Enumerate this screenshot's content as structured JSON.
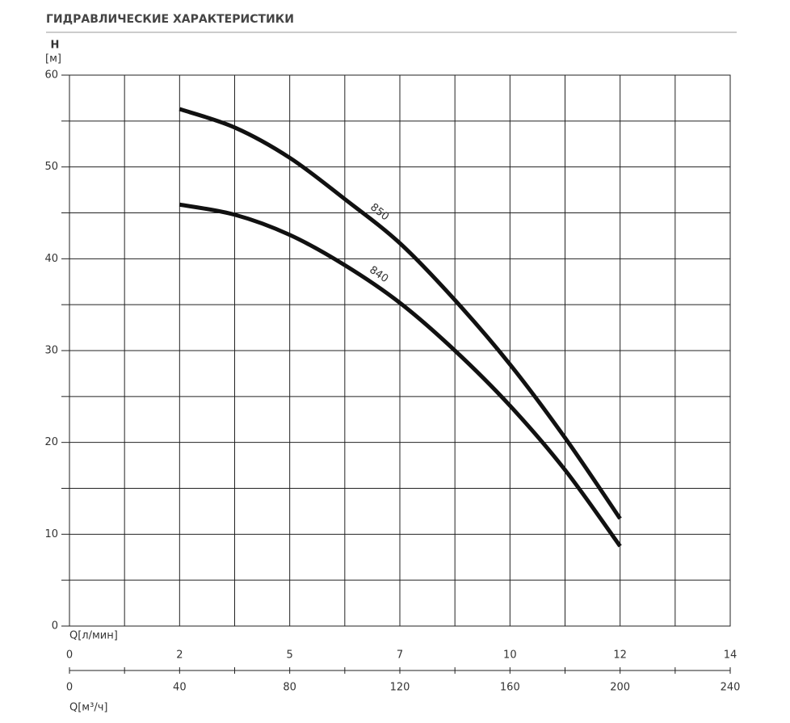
{
  "chart_data": {
    "type": "line",
    "title": "ГИДРАВЛИЧЕСКИЕ ХАРАКТЕРИСТИКИ",
    "y_label": "H",
    "y_unit": "[м]",
    "x2_label": "Q[л/мин]",
    "x_label": "Q[м³/ч]",
    "x": [
      40,
      60,
      80,
      100,
      120,
      140,
      160,
      180,
      200
    ],
    "series": [
      {
        "name": "850",
        "color": "#111111",
        "values": [
          56.3,
          54.3,
          51,
          46.5,
          41.7,
          35.5,
          28.5,
          20.5,
          11.7
        ]
      },
      {
        "name": "840",
        "color": "#111111",
        "values": [
          45.9,
          44.8,
          42.6,
          39.3,
          35.2,
          30,
          24,
          17,
          8.7
        ]
      }
    ],
    "xlim": [
      0,
      240
    ],
    "xticks": [
      0,
      40,
      80,
      120,
      160,
      200,
      240
    ],
    "x2lim": [
      0,
      14.4
    ],
    "x2ticks": [
      0,
      {
        "value": 2.4,
        "label": "2"
      },
      {
        "value": 4.8,
        "label": "5"
      },
      {
        "value": 7.2,
        "label": "7"
      },
      {
        "value": 9.6,
        "label": "10"
      },
      12,
      {
        "value": 14.4,
        "label": "14"
      }
    ],
    "ylim": [
      0,
      60
    ],
    "yticks": [
      0,
      10,
      20,
      30,
      40,
      50,
      60
    ],
    "xgrid": [
      0,
      20,
      40,
      60,
      80,
      100,
      120,
      140,
      160,
      180,
      200,
      220,
      240
    ],
    "ygrid": [
      0,
      5,
      10,
      15,
      20,
      25,
      30,
      35,
      40,
      45,
      50,
      55,
      60
    ],
    "grid": true
  }
}
